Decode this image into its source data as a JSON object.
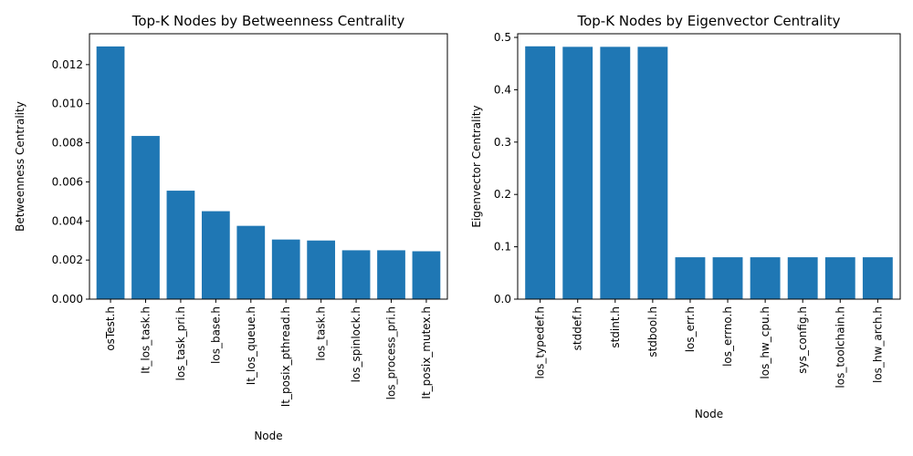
{
  "chart_data": [
    {
      "type": "bar",
      "title": "Top-K Nodes by Betweenness Centrality",
      "xlabel": "Node",
      "ylabel": "Betweenness Centrality",
      "categories": [
        "osTest.h",
        "It_los_task.h",
        "los_task_pri.h",
        "los_base.h",
        "It_los_queue.h",
        "It_posix_pthread.h",
        "los_task.h",
        "los_spinlock.h",
        "los_process_pri.h",
        "It_posix_mutex.h"
      ],
      "values": [
        0.01293,
        0.00835,
        0.00555,
        0.0045,
        0.00375,
        0.00305,
        0.003,
        0.0025,
        0.0025,
        0.00245
      ],
      "ylim": [
        0,
        0.01358
      ],
      "yticks": [
        0.0,
        0.002,
        0.004,
        0.006,
        0.008,
        0.01,
        0.012
      ],
      "ytick_labels": [
        "0.000",
        "0.002",
        "0.004",
        "0.006",
        "0.008",
        "0.010",
        "0.012"
      ],
      "bar_color": "#1f77b4",
      "grid": false
    },
    {
      "type": "bar",
      "title": "Top-K Nodes by Eigenvector Centrality",
      "xlabel": "Node",
      "ylabel": "Eigenvector Centrality",
      "categories": [
        "los_typedef.h",
        "stddef.h",
        "stdint.h",
        "stdbool.h",
        "los_err.h",
        "los_errno.h",
        "los_hw_cpu.h",
        "sys_config.h",
        "los_toolchain.h",
        "los_hw_arch.h"
      ],
      "values": [
        0.483,
        0.482,
        0.482,
        0.482,
        0.08,
        0.08,
        0.08,
        0.08,
        0.08,
        0.08
      ],
      "ylim": [
        0,
        0.507
      ],
      "yticks": [
        0.0,
        0.1,
        0.2,
        0.3,
        0.4,
        0.5
      ],
      "ytick_labels": [
        "0.0",
        "0.1",
        "0.2",
        "0.3",
        "0.4",
        "0.5"
      ],
      "bar_color": "#1f77b4",
      "grid": false
    }
  ]
}
